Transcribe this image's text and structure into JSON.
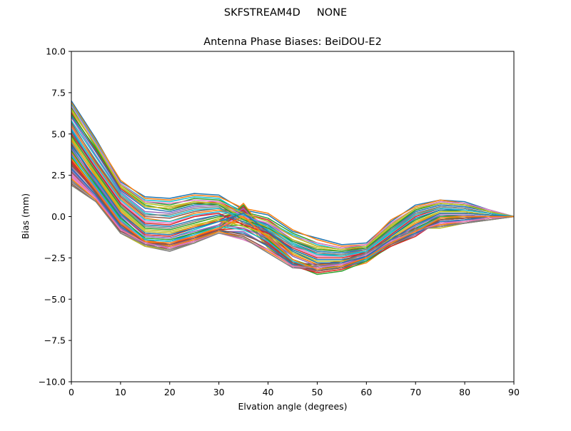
{
  "figure": {
    "suptitle": "SKFSTREAM4D     NONE"
  },
  "chart_data": {
    "type": "line",
    "title": "Antenna Phase Biases: BeiDOU-E2",
    "xlabel": "Elvation angle (degrees)",
    "ylabel": "Bias (mm)",
    "xlim": [
      0,
      90
    ],
    "ylim": [
      -10,
      10
    ],
    "xticks": [
      0,
      10,
      20,
      30,
      40,
      50,
      60,
      70,
      80,
      90
    ],
    "yticks": [
      -10.0,
      -7.5,
      -5.0,
      -2.5,
      0.0,
      2.5,
      5.0,
      7.5,
      10.0
    ],
    "x": [
      0,
      5,
      10,
      15,
      20,
      25,
      30,
      35,
      40,
      45,
      50,
      55,
      60,
      65,
      70,
      75,
      80,
      85,
      90
    ],
    "grid": false,
    "legend": "none",
    "colors": [
      "#1f77b4",
      "#ff7f0e",
      "#2ca02c",
      "#d62728",
      "#9467bd",
      "#8c564b",
      "#e377c2",
      "#7f7f7f",
      "#bcbd22",
      "#17becf"
    ],
    "series": [
      {
        "values": [
          7.0,
          4.7,
          2.1,
          1.2,
          1.1,
          1.4,
          1.3,
          0.4,
          0.1,
          -0.9,
          -1.3,
          -1.7,
          -1.6,
          -0.3,
          0.7,
          1.0,
          0.9,
          0.4,
          0.0
        ]
      },
      {
        "values": [
          6.9,
          4.6,
          2.2,
          1.1,
          1.0,
          1.3,
          1.2,
          0.5,
          0.2,
          -0.8,
          -1.4,
          -1.8,
          -1.7,
          -0.2,
          0.6,
          1.0,
          0.8,
          0.4,
          0.0
        ]
      },
      {
        "values": [
          6.6,
          4.2,
          1.9,
          0.9,
          0.7,
          1.1,
          1.0,
          0.3,
          -0.1,
          -1.0,
          -1.6,
          -1.9,
          -1.8,
          -0.4,
          0.5,
          0.9,
          0.8,
          0.3,
          0.0
        ]
      },
      {
        "values": [
          6.3,
          4.0,
          1.7,
          0.6,
          0.5,
          0.8,
          0.9,
          0.2,
          -0.2,
          -1.2,
          -1.8,
          -2.0,
          -1.9,
          -0.6,
          0.4,
          0.8,
          0.7,
          0.3,
          0.0
        ]
      },
      {
        "values": [
          6.0,
          3.7,
          1.5,
          0.3,
          0.2,
          0.6,
          0.7,
          0.0,
          -0.4,
          -1.4,
          -2.0,
          -2.1,
          -2.0,
          -0.8,
          0.3,
          0.7,
          0.6,
          0.3,
          0.0
        ]
      },
      {
        "values": [
          5.7,
          3.3,
          1.2,
          0.0,
          -0.1,
          0.3,
          0.5,
          0.1,
          -0.5,
          -1.6,
          -2.2,
          -2.3,
          -2.1,
          -0.9,
          0.1,
          0.6,
          0.5,
          0.2,
          0.0
        ]
      },
      {
        "values": [
          5.4,
          3.0,
          0.9,
          -0.3,
          -0.4,
          0.0,
          0.3,
          0.3,
          -0.6,
          -1.8,
          -2.4,
          -2.4,
          -2.2,
          -1.1,
          0.0,
          0.5,
          0.4,
          0.2,
          0.0
        ]
      },
      {
        "values": [
          5.1,
          2.8,
          0.7,
          -0.6,
          -0.7,
          -0.3,
          0.1,
          0.4,
          -0.8,
          -2.0,
          -2.6,
          -2.6,
          -2.3,
          -1.2,
          -0.2,
          0.4,
          0.3,
          0.1,
          0.0
        ]
      },
      {
        "values": [
          4.8,
          2.5,
          0.4,
          -0.9,
          -1.0,
          -0.6,
          -0.1,
          0.5,
          -0.9,
          -2.2,
          -2.8,
          -2.8,
          -2.5,
          -1.4,
          -0.4,
          0.3,
          0.3,
          0.1,
          0.0
        ]
      },
      {
        "values": [
          4.5,
          2.2,
          0.2,
          -1.2,
          -1.3,
          -0.8,
          -0.3,
          0.6,
          -1.0,
          -2.4,
          -3.0,
          -2.9,
          -2.6,
          -1.5,
          -0.6,
          0.2,
          0.2,
          0.1,
          0.0
        ]
      },
      {
        "values": [
          4.2,
          2.0,
          0.0,
          -1.4,
          -1.5,
          -1.0,
          -0.5,
          0.7,
          -1.1,
          -2.6,
          -3.2,
          -3.1,
          -2.7,
          -1.6,
          -0.8,
          0.1,
          0.1,
          0.0,
          0.0
        ]
      },
      {
        "values": [
          3.9,
          1.8,
          -0.2,
          -1.6,
          -1.7,
          -1.2,
          -0.6,
          0.8,
          -1.2,
          -2.8,
          -3.4,
          -3.2,
          -2.8,
          -1.7,
          -1.0,
          0.0,
          0.0,
          0.0,
          0.0
        ]
      },
      {
        "values": [
          3.6,
          1.6,
          -0.4,
          -1.7,
          -1.8,
          -1.3,
          -0.7,
          0.7,
          -1.3,
          -2.9,
          -3.5,
          -3.3,
          -2.7,
          -1.8,
          -1.1,
          -0.1,
          -0.1,
          0.0,
          0.0
        ]
      },
      {
        "values": [
          3.3,
          1.4,
          -0.6,
          -1.8,
          -1.9,
          -1.4,
          -0.8,
          0.6,
          -1.4,
          -3.0,
          -3.4,
          -3.2,
          -2.6,
          -1.8,
          -1.2,
          -0.2,
          -0.1,
          0.0,
          0.0
        ]
      },
      {
        "values": [
          3.0,
          1.3,
          -0.7,
          -1.8,
          -2.0,
          -1.5,
          -0.8,
          0.5,
          -1.5,
          -3.0,
          -3.3,
          -3.1,
          -2.5,
          -1.7,
          -1.1,
          -0.3,
          -0.2,
          0.0,
          0.0
        ]
      },
      {
        "values": [
          2.7,
          1.2,
          -0.8,
          -1.7,
          -2.0,
          -1.5,
          -0.7,
          0.4,
          -1.6,
          -3.1,
          -3.2,
          -3.0,
          -2.4,
          -1.6,
          -1.0,
          -0.4,
          -0.3,
          -0.1,
          0.0
        ]
      },
      {
        "values": [
          2.4,
          1.1,
          -0.9,
          -1.7,
          -2.0,
          -1.6,
          -0.8,
          0.3,
          -1.7,
          -3.1,
          -3.1,
          -2.9,
          -2.3,
          -1.5,
          -0.9,
          -0.5,
          -0.3,
          -0.1,
          0.0
        ]
      },
      {
        "values": [
          2.1,
          1.0,
          -1.0,
          -1.8,
          -2.1,
          -1.6,
          -0.8,
          0.1,
          -1.8,
          -3.0,
          -3.0,
          -2.8,
          -2.2,
          -1.4,
          -0.8,
          -0.6,
          -0.4,
          -0.1,
          0.0
        ]
      },
      {
        "values": [
          1.9,
          0.9,
          -1.0,
          -1.8,
          -2.0,
          -1.6,
          -0.9,
          -0.1,
          -1.9,
          -2.9,
          -2.9,
          -2.7,
          -2.1,
          -1.3,
          -0.7,
          -0.7,
          -0.4,
          -0.2,
          0.0
        ]
      },
      {
        "values": [
          6.8,
          4.5,
          2.0,
          1.0,
          0.9,
          1.2,
          1.1,
          0.2,
          -0.3,
          -1.1,
          -1.7,
          -2.0,
          -1.8,
          -0.5,
          0.5,
          0.9,
          0.8,
          0.4,
          0.0
        ]
      },
      {
        "values": [
          6.1,
          3.9,
          1.6,
          0.5,
          0.3,
          0.7,
          0.8,
          0.1,
          -0.5,
          -1.5,
          -2.1,
          -2.2,
          -2.0,
          -0.7,
          0.3,
          0.7,
          0.6,
          0.3,
          0.0
        ]
      },
      {
        "values": [
          5.5,
          3.2,
          1.1,
          -0.1,
          -0.3,
          0.2,
          0.4,
          0.0,
          -0.7,
          -1.7,
          -2.3,
          -2.4,
          -2.1,
          -1.0,
          0.1,
          0.6,
          0.5,
          0.2,
          0.0
        ]
      },
      {
        "values": [
          4.9,
          2.7,
          0.6,
          -0.7,
          -0.8,
          -0.4,
          0.0,
          0.2,
          -0.9,
          -2.0,
          -2.6,
          -2.6,
          -2.3,
          -1.2,
          -0.2,
          0.4,
          0.3,
          0.1,
          0.0
        ]
      },
      {
        "values": [
          4.4,
          2.1,
          0.1,
          -1.1,
          -1.2,
          -0.7,
          -0.2,
          0.4,
          -1.0,
          -2.3,
          -2.9,
          -2.8,
          -2.5,
          -1.4,
          -0.5,
          0.2,
          0.2,
          0.1,
          0.0
        ]
      },
      {
        "values": [
          3.8,
          1.7,
          -0.3,
          -1.5,
          -1.6,
          -1.1,
          -0.5,
          0.5,
          -1.2,
          -2.6,
          -3.2,
          -3.0,
          -2.6,
          -1.6,
          -0.8,
          0.0,
          0.1,
          0.0,
          0.0
        ]
      },
      {
        "values": [
          3.2,
          1.4,
          -0.6,
          -1.7,
          -1.8,
          -1.3,
          -0.7,
          0.3,
          -1.4,
          -2.8,
          -3.3,
          -3.1,
          -2.5,
          -1.7,
          -1.0,
          -0.2,
          -0.1,
          0.0,
          0.0
        ]
      },
      {
        "values": [
          2.6,
          1.1,
          -0.8,
          -1.6,
          -1.9,
          -1.4,
          -0.7,
          0.2,
          -1.6,
          -2.9,
          -3.1,
          -2.9,
          -2.3,
          -1.5,
          -0.9,
          -0.4,
          -0.3,
          -0.1,
          0.0
        ]
      },
      {
        "values": [
          2.2,
          1.0,
          -0.9,
          -1.6,
          -1.9,
          -1.5,
          -0.8,
          0.0,
          -1.7,
          -2.8,
          -2.9,
          -2.7,
          -2.2,
          -1.4,
          -0.8,
          -0.5,
          -0.4,
          -0.1,
          0.0
        ]
      },
      {
        "values": [
          6.4,
          4.3,
          1.9,
          0.8,
          0.6,
          0.9,
          0.8,
          -0.1,
          -0.6,
          -1.4,
          -1.9,
          -2.1,
          -1.9,
          -0.6,
          0.4,
          0.8,
          0.7,
          0.3,
          0.0
        ]
      },
      {
        "values": [
          5.8,
          3.6,
          1.4,
          0.2,
          0.0,
          0.4,
          0.5,
          -0.2,
          -0.8,
          -1.7,
          -2.3,
          -2.3,
          -2.1,
          -0.9,
          0.2,
          0.6,
          0.5,
          0.2,
          0.0
        ]
      },
      {
        "values": [
          5.2,
          2.9,
          0.8,
          -0.5,
          -0.6,
          -0.2,
          0.1,
          -0.3,
          -1.0,
          -2.0,
          -2.6,
          -2.6,
          -2.3,
          -1.2,
          -0.1,
          0.4,
          0.4,
          0.2,
          0.0
        ]
      },
      {
        "values": [
          4.6,
          2.4,
          0.3,
          -1.0,
          -1.1,
          -0.6,
          -0.3,
          -0.4,
          -1.2,
          -2.3,
          -2.9,
          -2.9,
          -2.5,
          -1.4,
          -0.4,
          0.2,
          0.2,
          0.1,
          0.0
        ]
      },
      {
        "values": [
          4.0,
          1.9,
          -0.1,
          -1.3,
          -1.4,
          -1.0,
          -0.6,
          -0.5,
          -1.4,
          -2.6,
          -3.1,
          -3.0,
          -2.6,
          -1.6,
          -0.7,
          0.0,
          0.1,
          0.0,
          0.0
        ]
      },
      {
        "values": [
          3.4,
          1.5,
          -0.5,
          -1.5,
          -1.7,
          -1.2,
          -0.8,
          -0.7,
          -1.6,
          -2.8,
          -3.2,
          -3.0,
          -2.5,
          -1.6,
          -0.9,
          -0.2,
          -0.1,
          0.0,
          0.0
        ]
      },
      {
        "values": [
          2.8,
          1.2,
          -0.7,
          -1.5,
          -1.8,
          -1.3,
          -0.9,
          -0.9,
          -1.8,
          -2.9,
          -3.1,
          -2.9,
          -2.3,
          -1.5,
          -0.9,
          -0.4,
          -0.2,
          -0.1,
          0.0
        ]
      },
      {
        "values": [
          2.0,
          0.9,
          -0.9,
          -1.4,
          -1.7,
          -1.3,
          -0.9,
          -1.2,
          -2.0,
          -2.8,
          -2.9,
          -2.7,
          -2.1,
          -1.3,
          -0.7,
          -0.6,
          -0.4,
          -0.2,
          0.0
        ]
      },
      {
        "values": [
          6.7,
          4.4,
          2.0,
          0.9,
          0.8,
          1.0,
          0.9,
          0.0,
          -0.4,
          -1.2,
          -1.6,
          -1.9,
          -1.7,
          -0.4,
          0.5,
          0.9,
          0.8,
          0.4,
          0.0
        ]
      },
      {
        "values": [
          5.6,
          3.4,
          1.3,
          0.1,
          0.1,
          0.5,
          0.6,
          -0.4,
          -0.9,
          -1.8,
          -2.2,
          -2.3,
          -2.0,
          -0.8,
          0.2,
          0.6,
          0.5,
          0.2,
          0.0
        ]
      },
      {
        "values": [
          4.7,
          2.6,
          0.5,
          -0.8,
          -0.9,
          -0.5,
          -0.2,
          -0.6,
          -1.1,
          -2.1,
          -2.7,
          -2.7,
          -2.4,
          -1.3,
          -0.3,
          0.3,
          0.3,
          0.1,
          0.0
        ]
      },
      {
        "values": [
          3.7,
          1.8,
          -0.2,
          -1.4,
          -1.5,
          -1.1,
          -0.6,
          -0.8,
          -1.5,
          -2.7,
          -3.2,
          -3.1,
          -2.6,
          -1.6,
          -0.8,
          -0.1,
          0.0,
          0.0,
          0.0
        ]
      },
      {
        "values": [
          2.9,
          1.3,
          -0.6,
          -1.6,
          -1.8,
          -1.4,
          -0.9,
          -1.0,
          -1.8,
          -2.9,
          -3.2,
          -3.0,
          -2.4,
          -1.6,
          -1.0,
          -0.3,
          -0.2,
          0.0,
          0.0
        ]
      },
      {
        "values": [
          2.3,
          1.0,
          -0.8,
          -1.5,
          -1.8,
          -1.4,
          -0.9,
          -1.3,
          -2.1,
          -3.0,
          -3.0,
          -2.8,
          -2.2,
          -1.4,
          -0.8,
          -0.5,
          -0.3,
          -0.1,
          0.0
        ]
      },
      {
        "values": [
          6.2,
          4.1,
          1.8,
          0.7,
          0.4,
          0.8,
          0.7,
          -0.2,
          -0.7,
          -1.5,
          -2.0,
          -2.1,
          -1.9,
          -0.7,
          0.4,
          0.8,
          0.7,
          0.3,
          0.0
        ]
      },
      {
        "values": [
          5.0,
          2.9,
          0.8,
          -0.4,
          -0.5,
          0.0,
          0.2,
          -0.5,
          -1.0,
          -1.9,
          -2.5,
          -2.5,
          -2.2,
          -1.1,
          0.0,
          0.5,
          0.4,
          0.2,
          0.0
        ]
      },
      {
        "values": [
          4.1,
          2.1,
          0.1,
          -1.2,
          -1.3,
          -0.9,
          -0.5,
          -0.7,
          -1.3,
          -2.4,
          -3.0,
          -2.9,
          -2.5,
          -1.5,
          -0.6,
          0.1,
          0.1,
          0.0,
          0.0
        ]
      },
      {
        "values": [
          3.1,
          1.5,
          -0.5,
          -1.6,
          -1.7,
          -1.3,
          -0.8,
          -1.1,
          -1.7,
          -2.8,
          -3.3,
          -3.1,
          -2.5,
          -1.6,
          -0.9,
          -0.2,
          -0.1,
          0.0,
          0.0
        ]
      },
      {
        "values": [
          2.5,
          1.1,
          -0.8,
          -1.6,
          -1.9,
          -1.5,
          -1.0,
          -1.4,
          -2.0,
          -3.0,
          -3.1,
          -2.9,
          -2.3,
          -1.5,
          -0.9,
          -0.4,
          -0.3,
          -0.1,
          0.0
        ]
      },
      {
        "values": [
          1.9,
          0.9,
          -1.0,
          -1.7,
          -2.0,
          -1.6,
          -1.0,
          -1.3,
          -2.2,
          -3.1,
          -3.0,
          -2.8,
          -2.2,
          -1.4,
          -0.8,
          -0.6,
          -0.4,
          -0.2,
          0.0
        ]
      },
      {
        "values": [
          6.5,
          4.3,
          1.8,
          0.6,
          0.5,
          0.9,
          0.8,
          0.2,
          -0.3,
          -1.2,
          -1.8,
          -2.0,
          -1.8,
          -0.5,
          0.5,
          0.8,
          0.7,
          0.3,
          0.0
        ]
      },
      {
        "values": [
          5.3,
          3.1,
          1.0,
          -0.2,
          -0.3,
          0.1,
          0.3,
          0.1,
          -0.6,
          -1.6,
          -2.3,
          -2.4,
          -2.1,
          -1.0,
          0.1,
          0.5,
          0.4,
          0.2,
          0.0
        ]
      },
      {
        "values": [
          4.3,
          2.3,
          0.2,
          -1.0,
          -1.1,
          -0.7,
          -0.3,
          0.2,
          -0.9,
          -2.1,
          -2.8,
          -2.8,
          -2.4,
          -1.4,
          -0.5,
          0.2,
          0.2,
          0.1,
          0.0
        ]
      },
      {
        "values": [
          3.5,
          1.6,
          -0.4,
          -1.5,
          -1.6,
          -1.2,
          -0.7,
          0.0,
          -1.3,
          -2.6,
          -3.2,
          -3.0,
          -2.5,
          -1.6,
          -0.9,
          -0.1,
          0.0,
          0.0,
          0.0
        ]
      }
    ]
  }
}
